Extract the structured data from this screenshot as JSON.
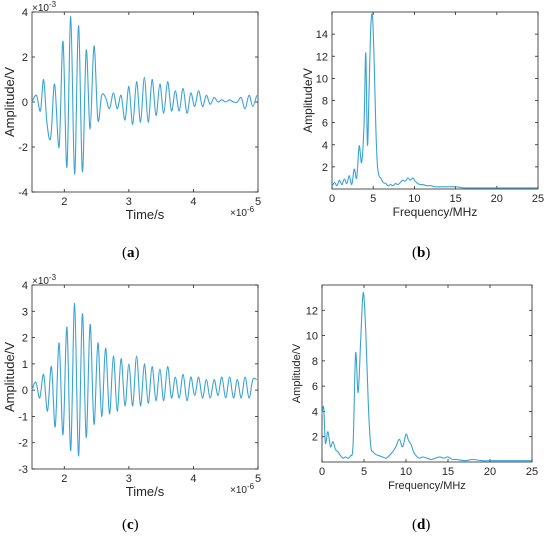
{
  "chart_data": [
    {
      "id": "a",
      "caption": "a",
      "type": "line",
      "xlabel": "Time/s",
      "ylabel": "Amplitude/V",
      "xlim": [
        1.5,
        5
      ],
      "ylim": [
        -4,
        4
      ],
      "x_ticks": [
        "2",
        "3",
        "4",
        "5"
      ],
      "y_ticks": [
        "-4",
        "-2",
        "0",
        "2",
        "4"
      ],
      "x_exponent": "×10",
      "x_exponent_power": "-6",
      "y_exponent": "×10",
      "y_exponent_power": "-3",
      "color": "#3aa3d4",
      "series": [
        {
          "x": [
            1.5,
            1.57,
            1.63,
            1.68,
            1.73,
            1.79,
            1.85,
            1.92,
            1.98,
            2.04,
            2.1,
            2.16,
            2.22,
            2.28,
            2.34,
            2.4,
            2.46,
            2.52,
            2.58,
            2.64,
            2.7,
            2.76,
            2.82,
            2.88,
            2.94,
            3.0,
            3.06,
            3.12,
            3.18,
            3.24,
            3.3,
            3.36,
            3.42,
            3.48,
            3.54,
            3.6,
            3.66,
            3.72,
            3.78,
            3.84,
            3.9,
            3.96,
            4.02,
            4.08,
            4.14,
            4.2,
            4.26,
            4.32,
            4.38,
            4.44,
            4.5,
            4.56,
            4.62,
            4.68,
            4.74,
            4.8,
            4.86,
            4.92,
            4.98
          ],
          "y": [
            0.0,
            0.3,
            -0.4,
            1.0,
            -0.9,
            -1.6,
            0.8,
            -2.0,
            2.7,
            -2.9,
            3.8,
            -3.2,
            3.4,
            -3.1,
            2.3,
            -1.2,
            2.5,
            -0.8,
            0.3,
            0.2,
            -0.3,
            0.4,
            -0.3,
            0.3,
            -0.8,
            0.7,
            -1.0,
            0.9,
            -0.9,
            1.1,
            -0.9,
            1.0,
            -0.6,
            0.8,
            -0.5,
            0.9,
            -0.4,
            0.5,
            -0.4,
            0.6,
            -0.5,
            0.4,
            -0.2,
            0.5,
            -0.2,
            0.3,
            -0.1,
            0.2,
            0.0,
            0.1,
            0.0,
            0.1,
            0.0,
            0.0,
            0.2,
            -0.3,
            0.3,
            -0.2,
            0.3
          ]
        }
      ]
    },
    {
      "id": "b",
      "caption": "b",
      "type": "line",
      "xlabel": "Frequency/MHz",
      "ylabel": "Amplitude/V",
      "xlim": [
        0,
        25
      ],
      "ylim": [
        0,
        16
      ],
      "x_ticks": [
        "0",
        "5",
        "10",
        "15",
        "20",
        "25"
      ],
      "y_ticks": [
        "2",
        "4",
        "6",
        "8",
        "10",
        "12",
        "14"
      ],
      "color": "#3aa3d4",
      "series": [
        {
          "x": [
            0.0,
            0.3,
            0.6,
            0.9,
            1.2,
            1.5,
            1.8,
            2.1,
            2.4,
            2.7,
            3.0,
            3.3,
            3.6,
            3.9,
            4.1,
            4.3,
            4.5,
            4.7,
            4.9,
            5.1,
            5.3,
            5.5,
            5.7,
            5.9,
            6.2,
            6.5,
            6.8,
            7.1,
            7.4,
            7.7,
            8.0,
            8.3,
            8.6,
            8.9,
            9.2,
            9.5,
            9.8,
            10.1,
            10.4,
            10.7,
            11.0,
            11.5,
            12.0,
            12.5,
            13.0,
            13.5,
            14.0,
            15.0,
            16.0,
            17.0,
            18.0,
            19.0,
            20.0,
            21.0,
            22.0,
            23.0,
            24.0,
            25.0
          ],
          "y": [
            0.2,
            0.6,
            0.3,
            0.8,
            0.4,
            0.9,
            0.5,
            1.2,
            0.4,
            1.8,
            1.0,
            3.9,
            2.4,
            6.0,
            12.3,
            4.0,
            9.0,
            14.5,
            15.7,
            12.0,
            6.0,
            2.3,
            1.2,
            1.0,
            0.6,
            0.5,
            0.3,
            0.4,
            0.3,
            0.5,
            0.4,
            0.6,
            0.8,
            0.7,
            1.0,
            0.8,
            1.0,
            0.7,
            0.5,
            0.4,
            0.4,
            0.3,
            0.3,
            0.2,
            0.2,
            0.2,
            0.2,
            0.2,
            0.1,
            0.1,
            0.1,
            0.1,
            0.1,
            0.1,
            0.1,
            0.1,
            0.1,
            0.1
          ]
        }
      ]
    },
    {
      "id": "c",
      "caption": "c",
      "type": "line",
      "xlabel": "Time/s",
      "ylabel": "Amplitude/V",
      "xlim": [
        1.5,
        5
      ],
      "ylim": [
        -3,
        4
      ],
      "x_ticks": [
        "2",
        "3",
        "4",
        "5"
      ],
      "y_ticks": [
        "-3",
        "-2",
        "-1",
        "0",
        "1",
        "2",
        "3",
        "4"
      ],
      "x_exponent": "×10",
      "x_exponent_power": "-6",
      "y_exponent": "×10",
      "y_exponent_power": "-3",
      "color": "#3aa3d4",
      "series": [
        {
          "x": [
            1.5,
            1.56,
            1.62,
            1.68,
            1.74,
            1.8,
            1.86,
            1.92,
            1.98,
            2.04,
            2.1,
            2.16,
            2.22,
            2.28,
            2.34,
            2.4,
            2.46,
            2.52,
            2.58,
            2.64,
            2.7,
            2.76,
            2.82,
            2.88,
            2.94,
            3.0,
            3.06,
            3.12,
            3.18,
            3.24,
            3.3,
            3.36,
            3.42,
            3.48,
            3.54,
            3.6,
            3.66,
            3.72,
            3.78,
            3.84,
            3.9,
            3.96,
            4.02,
            4.08,
            4.14,
            4.2,
            4.26,
            4.32,
            4.38,
            4.44,
            4.5,
            4.56,
            4.62,
            4.68,
            4.74,
            4.8,
            4.86,
            4.92,
            4.98
          ],
          "y": [
            0.0,
            0.3,
            -0.3,
            0.6,
            -0.8,
            0.9,
            -1.4,
            1.8,
            -1.7,
            2.4,
            -2.3,
            3.3,
            -2.5,
            2.9,
            -1.8,
            2.5,
            -1.3,
            1.8,
            -1.0,
            1.6,
            -0.9,
            1.3,
            -0.8,
            1.2,
            -0.6,
            1.0,
            -0.6,
            1.3,
            -0.6,
            1.0,
            -0.5,
            0.9,
            -0.4,
            0.8,
            -0.4,
            0.9,
            -0.3,
            0.5,
            -0.3,
            0.6,
            -0.4,
            0.5,
            -0.2,
            0.5,
            -0.3,
            0.4,
            -0.3,
            0.4,
            -0.2,
            0.5,
            -0.3,
            0.5,
            -0.3,
            0.4,
            -0.3,
            0.5,
            -0.3,
            0.4,
            0.4
          ]
        }
      ]
    },
    {
      "id": "d",
      "caption": "d",
      "type": "line",
      "xlabel": "Frequency/MHz",
      "ylabel": "Amplitude/V",
      "xlim": [
        0,
        25
      ],
      "ylim": [
        0,
        14
      ],
      "x_ticks": [
        "0",
        "5",
        "10",
        "15",
        "20",
        "25"
      ],
      "y_ticks": [
        "2",
        "4",
        "6",
        "8",
        "10",
        "12"
      ],
      "color": "#3aa3d4",
      "series": [
        {
          "x": [
            0.0,
            0.2,
            0.4,
            0.7,
            1.0,
            1.3,
            1.6,
            1.9,
            2.2,
            2.5,
            2.8,
            3.1,
            3.4,
            3.7,
            4.0,
            4.3,
            4.6,
            4.9,
            5.2,
            5.5,
            5.8,
            6.1,
            6.4,
            6.8,
            7.2,
            7.6,
            8.0,
            8.4,
            8.8,
            9.2,
            9.6,
            10.0,
            10.3,
            10.6,
            10.9,
            11.2,
            11.6,
            12.0,
            12.5,
            13.0,
            13.5,
            14.0,
            14.5,
            15.0,
            15.5,
            16.0,
            17.0,
            18.0,
            19.0,
            20.0,
            21.0,
            22.0,
            23.0,
            24.0,
            25.0
          ],
          "y": [
            3.8,
            4.3,
            1.5,
            2.4,
            1.2,
            1.6,
            1.0,
            0.8,
            0.5,
            0.3,
            0.4,
            0.3,
            0.5,
            1.4,
            8.6,
            5.5,
            9.5,
            13.4,
            10.5,
            4.8,
            1.3,
            0.8,
            0.6,
            0.5,
            0.4,
            0.3,
            0.5,
            0.8,
            1.2,
            1.8,
            1.2,
            2.2,
            1.7,
            1.4,
            0.8,
            0.5,
            0.3,
            0.4,
            0.3,
            0.2,
            0.3,
            0.4,
            0.3,
            0.4,
            0.2,
            0.2,
            0.1,
            0.2,
            0.1,
            0.1,
            0.1,
            0.1,
            0.1,
            0.1,
            0.1
          ]
        }
      ]
    }
  ]
}
